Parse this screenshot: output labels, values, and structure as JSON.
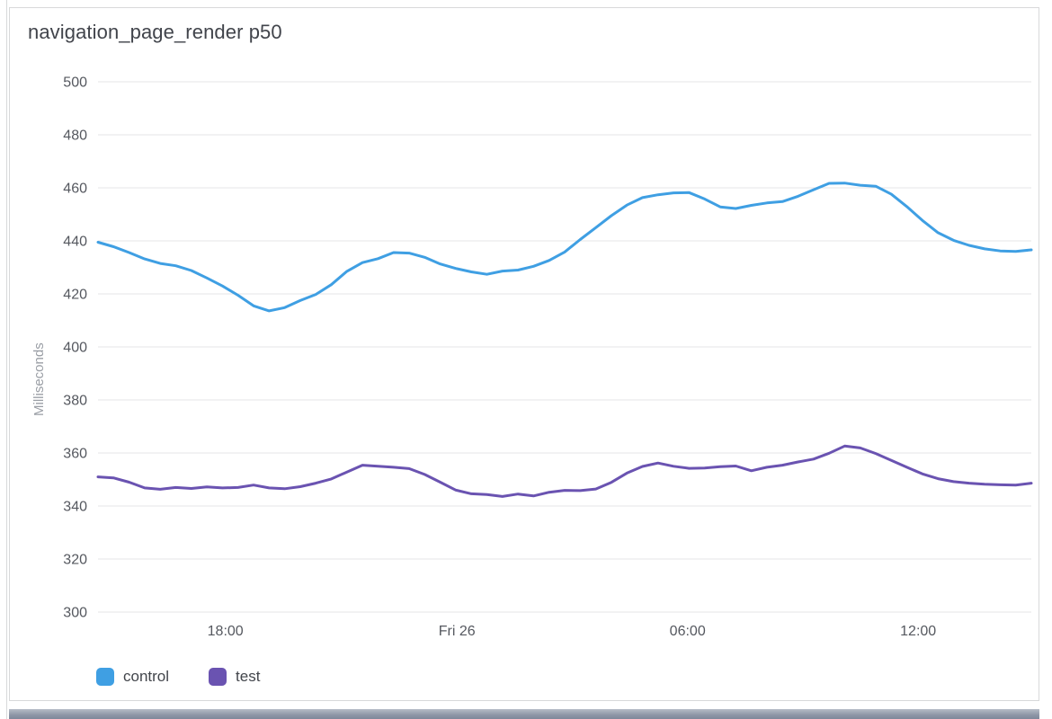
{
  "panel": {
    "title": "navigation_page_render p50"
  },
  "chart_data": {
    "type": "line",
    "title": "navigation_page_render p50",
    "xlabel": "",
    "ylabel": "Milliseconds",
    "ylim": [
      300,
      500
    ],
    "y_ticks": [
      300,
      320,
      340,
      360,
      380,
      400,
      420,
      440,
      460,
      480,
      500
    ],
    "x_ticks": [
      {
        "label": "18:00",
        "pos": 0.1365
      },
      {
        "label": "Fri 26",
        "pos": 0.3846
      },
      {
        "label": "06:00",
        "pos": 0.6317
      },
      {
        "label": "12:00",
        "pos": 0.8788
      }
    ],
    "grid": "horizontal",
    "grid_color": "#e4e5e7",
    "legend_position": "bottom-left",
    "series": [
      {
        "name": "control",
        "color": "#3f9fe3",
        "values": [
          439.5,
          437.8,
          435.6,
          433.2,
          431.5,
          430.6,
          428.8,
          426.0,
          423.0,
          419.5,
          415.5,
          413.6,
          414.8,
          417.5,
          419.8,
          423.5,
          428.5,
          431.8,
          433.3,
          435.6,
          435.4,
          433.8,
          431.3,
          429.6,
          428.3,
          427.4,
          428.6,
          429.0,
          430.4,
          432.6,
          435.8,
          440.5,
          445.0,
          449.5,
          453.5,
          456.3,
          457.4,
          458.1,
          458.2,
          455.8,
          452.8,
          452.2,
          453.4,
          454.3,
          454.8,
          456.8,
          459.3,
          461.7,
          461.8,
          461.0,
          460.6,
          457.6,
          452.9,
          447.7,
          443.1,
          440.2,
          438.3,
          437.0,
          436.2,
          436.0,
          436.6
        ]
      },
      {
        "name": "test",
        "color": "#6a53b1",
        "values": [
          351.0,
          350.6,
          349.0,
          346.8,
          346.3,
          347.0,
          346.6,
          347.2,
          346.8,
          347.0,
          347.9,
          346.8,
          346.5,
          347.3,
          348.6,
          350.2,
          352.8,
          355.4,
          355.0,
          354.6,
          354.1,
          351.9,
          349.0,
          346.0,
          344.6,
          344.3,
          343.6,
          344.5,
          343.8,
          345.2,
          345.9,
          345.8,
          346.4,
          348.9,
          352.4,
          354.9,
          356.2,
          355.0,
          354.2,
          354.3,
          354.8,
          355.1,
          353.3,
          354.6,
          355.4,
          356.6,
          357.7,
          359.9,
          362.6,
          361.9,
          359.8,
          357.2,
          354.6,
          352.1,
          350.3,
          349.2,
          348.6,
          348.2,
          348.0,
          347.9,
          348.6
        ]
      }
    ]
  }
}
